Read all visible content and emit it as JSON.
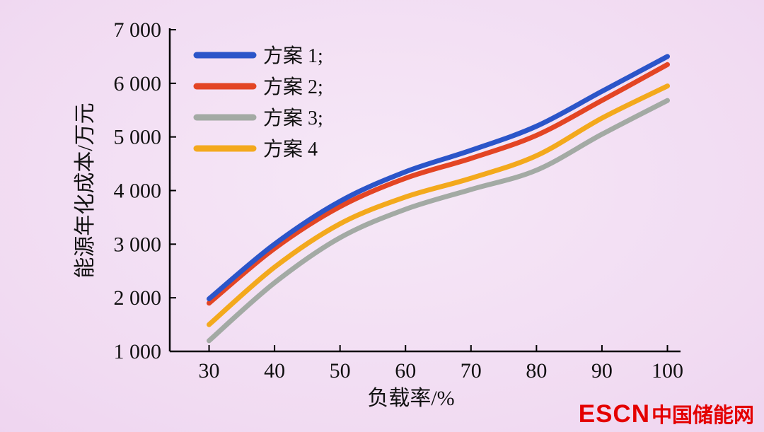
{
  "chart_data": {
    "type": "line",
    "title": "",
    "xlabel": "负载率/%",
    "ylabel": "能源年化成本/万元",
    "x": [
      30,
      40,
      50,
      60,
      70,
      80,
      90,
      100
    ],
    "series": [
      {
        "name": "方案 1;",
        "color": "#2b55c9",
        "values": [
          1980,
          3000,
          3800,
          4350,
          4750,
          5200,
          5850,
          6500
        ]
      },
      {
        "name": "方案 2;",
        "color": "#e34524",
        "values": [
          1900,
          2920,
          3700,
          4230,
          4600,
          5030,
          5680,
          6350
        ]
      },
      {
        "name": "方案 3;",
        "color": "#a3aaa4",
        "values": [
          1200,
          2280,
          3120,
          3650,
          4020,
          4380,
          5050,
          5680
        ]
      },
      {
        "name": "方案 4",
        "color": "#f3a91d",
        "values": [
          1500,
          2570,
          3380,
          3880,
          4230,
          4650,
          5350,
          5950
        ]
      }
    ],
    "xlim": [
      24,
      102
    ],
    "ylim": [
      1000,
      7000
    ],
    "xticks": [
      30,
      40,
      50,
      60,
      70,
      80,
      90,
      100
    ],
    "yticks": [
      1000,
      2000,
      3000,
      4000,
      5000,
      6000,
      7000
    ],
    "xtick_labels": [
      "30",
      "40",
      "50",
      "60",
      "70",
      "80",
      "90",
      "100"
    ],
    "ytick_labels": [
      "1 000",
      "2 000",
      "3 000",
      "4 000",
      "5 000",
      "6 000",
      "7 000"
    ],
    "grid": false,
    "legend_position": "top-left"
  },
  "watermark": {
    "logo": "ESCN",
    "text": "中国储能网",
    "color": "#e40000"
  },
  "style": {
    "axis_color": "#000000",
    "text_color": "#111111"
  }
}
